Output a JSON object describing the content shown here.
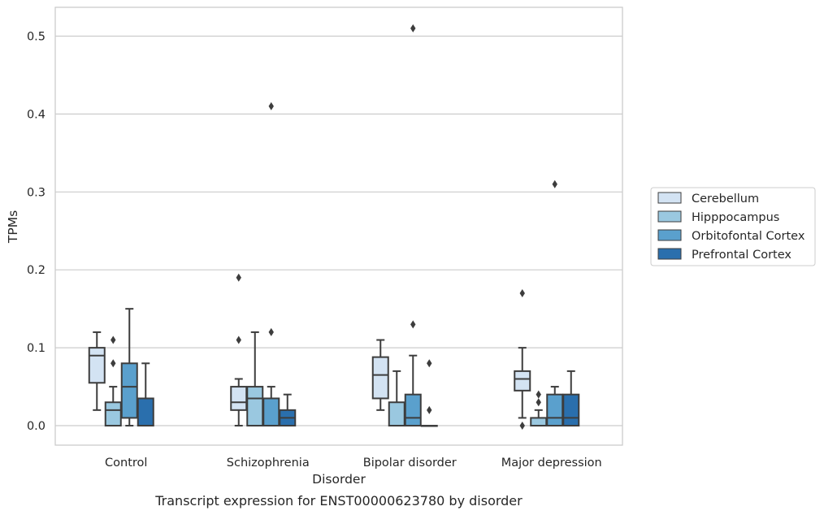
{
  "chart_data": {
    "type": "box",
    "caption": "Transcript expression for ENST00000623780 by disorder",
    "xlabel": "Disorder",
    "ylabel": "TPMs",
    "ylim": [
      -0.025,
      0.537
    ],
    "yticks": [
      "0.0",
      "0.1",
      "0.2",
      "0.3",
      "0.4",
      "0.5"
    ],
    "grid": true,
    "legend_position": "right",
    "categories": [
      "Control",
      "Schizophrenia",
      "Bipolar disorder",
      "Major depression"
    ],
    "series": [
      {
        "name": "Cerebellum",
        "color": "#d3e3f3",
        "boxes": [
          {
            "low": 0.02,
            "q1": 0.055,
            "median": 0.09,
            "q3": 0.1,
            "high": 0.12,
            "outliers": []
          },
          {
            "low": 0.0,
            "q1": 0.02,
            "median": 0.03,
            "q3": 0.05,
            "high": 0.06,
            "outliers": [
              0.19,
              0.11
            ]
          },
          {
            "low": 0.02,
            "q1": 0.035,
            "median": 0.065,
            "q3": 0.088,
            "high": 0.11,
            "outliers": []
          },
          {
            "low": 0.01,
            "q1": 0.045,
            "median": 0.06,
            "q3": 0.07,
            "high": 0.1,
            "outliers": [
              0.17,
              0.0
            ]
          }
        ]
      },
      {
        "name": "Hipppocampus",
        "color": "#9ac8e0",
        "boxes": [
          {
            "low": 0.0,
            "q1": 0.0,
            "median": 0.02,
            "q3": 0.03,
            "high": 0.05,
            "outliers": [
              0.11,
              0.08
            ]
          },
          {
            "low": 0.0,
            "q1": 0.0,
            "median": 0.035,
            "q3": 0.05,
            "high": 0.12,
            "outliers": []
          },
          {
            "low": 0.0,
            "q1": 0.0,
            "median": 0.0,
            "q3": 0.03,
            "high": 0.07,
            "outliers": []
          },
          {
            "low": 0.0,
            "q1": 0.0,
            "median": 0.0,
            "q3": 0.01,
            "high": 0.02,
            "outliers": [
              0.04,
              0.03
            ]
          }
        ]
      },
      {
        "name": "Orbitofontal Cortex",
        "color": "#5aa0cd",
        "boxes": [
          {
            "low": 0.0,
            "q1": 0.01,
            "median": 0.05,
            "q3": 0.08,
            "high": 0.15,
            "outliers": []
          },
          {
            "low": 0.0,
            "q1": 0.0,
            "median": 0.0,
            "q3": 0.035,
            "high": 0.05,
            "outliers": [
              0.41,
              0.12
            ]
          },
          {
            "low": 0.0,
            "q1": 0.0,
            "median": 0.01,
            "q3": 0.04,
            "high": 0.09,
            "outliers": [
              0.51,
              0.13
            ]
          },
          {
            "low": 0.0,
            "q1": 0.0,
            "median": 0.01,
            "q3": 0.04,
            "high": 0.05,
            "outliers": [
              0.31
            ]
          }
        ]
      },
      {
        "name": "Prefrontal Cortex",
        "color": "#2a6fad",
        "boxes": [
          {
            "low": 0.0,
            "q1": 0.0,
            "median": 0.0,
            "q3": 0.035,
            "high": 0.08,
            "outliers": []
          },
          {
            "low": 0.0,
            "q1": 0.0,
            "median": 0.01,
            "q3": 0.02,
            "high": 0.04,
            "outliers": []
          },
          {
            "low": 0.0,
            "q1": 0.0,
            "median": 0.0,
            "q3": 0.0,
            "high": 0.0,
            "outliers": [
              0.08,
              0.02
            ]
          },
          {
            "low": 0.0,
            "q1": 0.0,
            "median": 0.01,
            "q3": 0.04,
            "high": 0.07,
            "outliers": []
          }
        ]
      }
    ]
  }
}
